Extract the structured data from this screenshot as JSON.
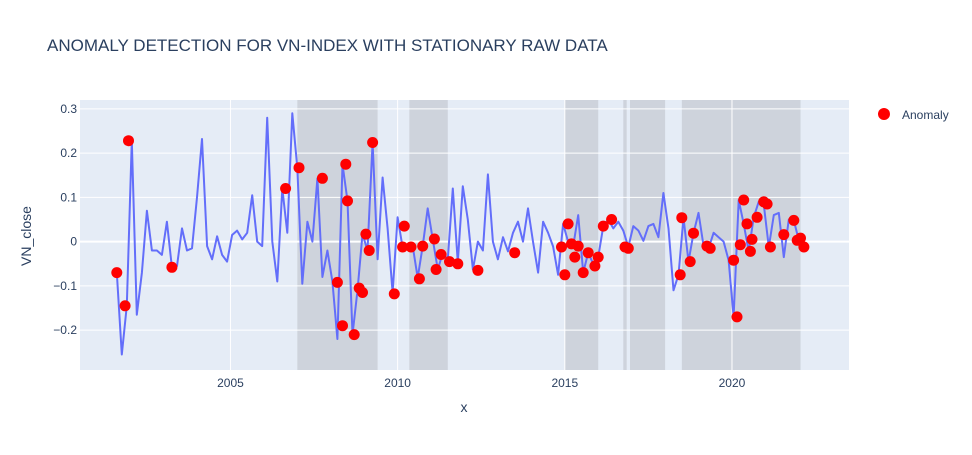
{
  "chart_data": {
    "type": "line",
    "title": "ANOMALY DETECTION FOR VN-INDEX WITH STATIONARY RAW DATA",
    "xlabel": "x",
    "ylabel": "VN_close",
    "xlim": [
      2000.5,
      2023.5
    ],
    "ylim": [
      -0.29,
      0.32
    ],
    "x_ticks": [
      2005,
      2010,
      2015,
      2020
    ],
    "y_ticks": [
      0.3,
      0.2,
      0.1,
      0,
      -0.1,
      -0.2
    ],
    "y_tick_labels": [
      "0.3",
      "0.2",
      "0.1",
      "0",
      "−0.1",
      "−0.2"
    ],
    "legend": {
      "position": "right",
      "entries": [
        "Anomaly"
      ]
    },
    "grid": true,
    "colors": {
      "line": "#636efa",
      "anomaly": "#ff0000",
      "plot_bg": "#e5ecf6",
      "band": "#bec3cb"
    },
    "shaded_periods": [
      [
        2007.0,
        2009.4
      ],
      [
        2010.35,
        2011.5
      ],
      [
        2015.0,
        2016.0
      ],
      [
        2016.75,
        2016.85
      ],
      [
        2016.95,
        2018.0
      ],
      [
        2018.5,
        2022.05
      ]
    ],
    "series": [
      {
        "kind": "line",
        "x": [
          2001.6,
          2001.75,
          2001.9,
          2002.05,
          2002.2,
          2002.35,
          2002.5,
          2002.65,
          2002.8,
          2002.95,
          2003.1,
          2003.25,
          2003.4,
          2003.55,
          2003.7,
          2003.85,
          2004.0,
          2004.15,
          2004.3,
          2004.45,
          2004.6,
          2004.75,
          2004.9,
          2005.05,
          2005.2,
          2005.35,
          2005.5,
          2005.65,
          2005.8,
          2005.95,
          2006.1,
          2006.25,
          2006.4,
          2006.55,
          2006.7,
          2006.85,
          2007.0,
          2007.15,
          2007.3,
          2007.45,
          2007.6,
          2007.75,
          2007.9,
          2008.05,
          2008.2,
          2008.35,
          2008.5,
          2008.65,
          2008.8,
          2008.95,
          2009.1,
          2009.25,
          2009.4,
          2009.55,
          2009.7,
          2009.85,
          2010.0,
          2010.15,
          2010.3,
          2010.45,
          2010.6,
          2010.75,
          2010.9,
          2011.05,
          2011.2,
          2011.35,
          2011.5,
          2011.65,
          2011.8,
          2011.95,
          2012.1,
          2012.25,
          2012.4,
          2012.55,
          2012.7,
          2012.85,
          2013.0,
          2013.15,
          2013.3,
          2013.45,
          2013.6,
          2013.75,
          2013.9,
          2014.05,
          2014.2,
          2014.35,
          2014.5,
          2014.65,
          2014.8,
          2014.95,
          2015.1,
          2015.25,
          2015.4,
          2015.55,
          2015.7,
          2015.85,
          2016.0,
          2016.15,
          2016.3,
          2016.45,
          2016.6,
          2016.75,
          2016.9,
          2017.05,
          2017.2,
          2017.35,
          2017.5,
          2017.65,
          2017.8,
          2017.95,
          2018.1,
          2018.25,
          2018.4,
          2018.55,
          2018.7,
          2018.85,
          2019.0,
          2019.15,
          2019.3,
          2019.45,
          2019.6,
          2019.75,
          2019.9,
          2020.05,
          2020.2,
          2020.35,
          2020.5,
          2020.65,
          2020.8,
          2020.95,
          2021.1,
          2021.25,
          2021.4,
          2021.55,
          2021.7,
          2021.85,
          2022.0,
          2022.15
        ],
        "y": [
          -0.07,
          -0.255,
          -0.145,
          0.228,
          -0.165,
          -0.07,
          0.07,
          -0.02,
          -0.02,
          -0.03,
          0.045,
          -0.058,
          -0.055,
          0.03,
          -0.02,
          -0.015,
          0.1,
          0.232,
          -0.01,
          -0.04,
          0.012,
          -0.03,
          -0.045,
          0.015,
          0.025,
          0.005,
          0.02,
          0.105,
          0.0,
          -0.01,
          0.28,
          0.0,
          -0.09,
          0.12,
          0.02,
          0.29,
          0.167,
          -0.095,
          0.045,
          0.0,
          0.143,
          -0.08,
          -0.02,
          -0.09,
          -0.22,
          0.175,
          0.092,
          -0.21,
          -0.11,
          0.017,
          -0.02,
          0.224,
          -0.04,
          0.145,
          0.03,
          -0.115,
          0.055,
          -0.013,
          -0.012,
          -0.01,
          -0.082,
          -0.01,
          0.075,
          0.006,
          -0.063,
          -0.025,
          -0.04,
          0.12,
          -0.047,
          0.125,
          0.05,
          -0.063,
          0.0,
          -0.02,
          0.152,
          0.0,
          -0.04,
          0.01,
          -0.022,
          0.02,
          0.045,
          0.0,
          0.075,
          0.0,
          -0.07,
          0.045,
          0.02,
          -0.011,
          -0.075,
          0.04,
          0.0,
          -0.01,
          0.06,
          -0.07,
          -0.025,
          -0.05,
          -0.035,
          0.035,
          0.05,
          0.03,
          0.045,
          0.025,
          -0.012,
          0.035,
          0.025,
          0.002,
          0.035,
          0.04,
          0.01,
          0.11,
          0.03,
          -0.11,
          -0.075,
          0.054,
          -0.045,
          0.019,
          0.065,
          -0.01,
          -0.015,
          0.02,
          0.01,
          0.0,
          -0.042,
          -0.17,
          0.094,
          0.04,
          -0.022,
          0.055,
          0.09,
          0.085,
          -0.012,
          0.06,
          0.065,
          -0.035,
          0.05,
          0.048,
          0.003,
          -0.012
        ]
      },
      {
        "kind": "markers",
        "name": "Anomaly",
        "x": [
          2001.6,
          2001.85,
          2001.95,
          2003.25,
          2006.65,
          2007.05,
          2007.75,
          2008.2,
          2008.35,
          2008.45,
          2008.5,
          2008.7,
          2008.85,
          2008.95,
          2009.05,
          2009.15,
          2009.25,
          2009.9,
          2010.15,
          2010.2,
          2010.4,
          2010.65,
          2010.75,
          2011.1,
          2011.15,
          2011.3,
          2011.55,
          2011.8,
          2012.4,
          2013.5,
          2014.9,
          2015.0,
          2015.1,
          2015.2,
          2015.3,
          2015.4,
          2015.55,
          2015.7,
          2015.9,
          2016.0,
          2016.15,
          2016.4,
          2016.8,
          2016.9,
          2018.45,
          2018.5,
          2018.75,
          2018.85,
          2019.25,
          2019.35,
          2020.05,
          2020.15,
          2020.25,
          2020.35,
          2020.45,
          2020.55,
          2020.6,
          2020.75,
          2020.95,
          2021.05,
          2021.15,
          2021.55,
          2021.85,
          2021.95,
          2022.05,
          2022.15
        ],
        "y": [
          -0.07,
          -0.145,
          0.228,
          -0.058,
          0.12,
          0.167,
          0.143,
          -0.092,
          -0.19,
          0.175,
          0.092,
          -0.21,
          -0.105,
          -0.115,
          0.017,
          -0.02,
          0.224,
          -0.118,
          -0.012,
          0.035,
          -0.012,
          -0.084,
          -0.01,
          0.006,
          -0.063,
          -0.029,
          -0.045,
          -0.05,
          -0.065,
          -0.025,
          -0.012,
          -0.075,
          0.04,
          -0.005,
          -0.035,
          -0.01,
          -0.07,
          -0.025,
          -0.055,
          -0.035,
          0.035,
          0.05,
          -0.012,
          -0.015,
          -0.075,
          0.054,
          -0.045,
          0.019,
          -0.01,
          -0.015,
          -0.042,
          -0.17,
          -0.007,
          0.094,
          0.04,
          -0.022,
          0.005,
          0.055,
          0.09,
          0.085,
          -0.012,
          0.016,
          0.048,
          0.003,
          0.008,
          -0.012
        ]
      }
    ]
  }
}
